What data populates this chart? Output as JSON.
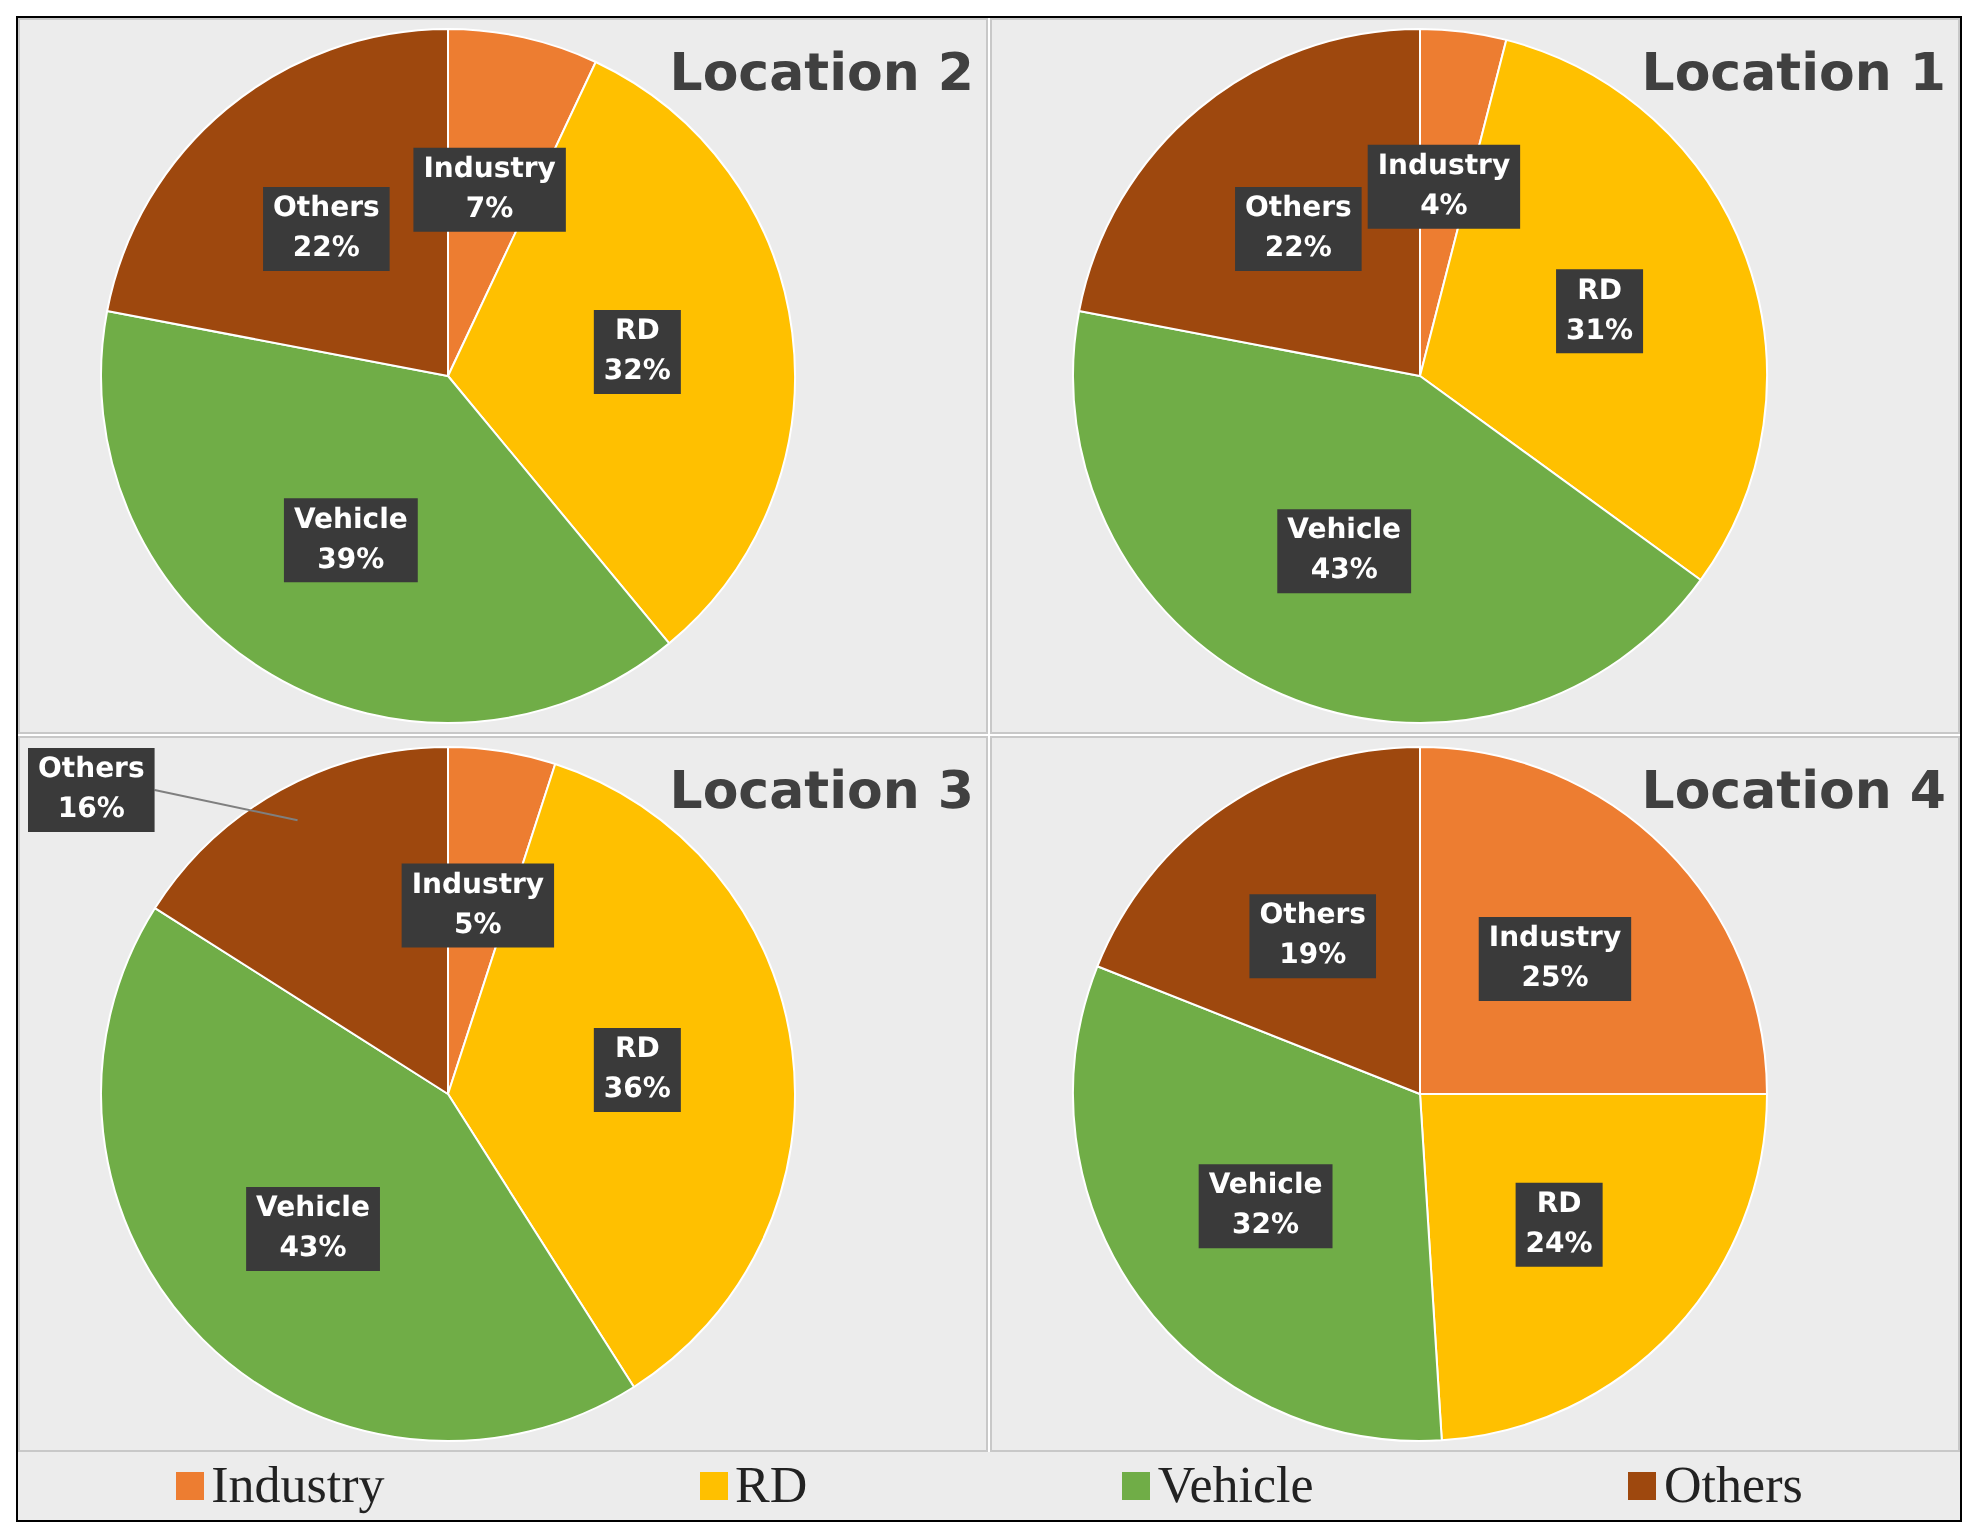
{
  "chart_data": [
    {
      "type": "pie",
      "title": "Location 2",
      "categories": [
        "Industry",
        "RD",
        "Vehicle",
        "Others"
      ],
      "values": [
        7,
        32,
        39,
        22
      ],
      "value_labels": [
        "7%",
        "32%",
        "39%",
        "22%"
      ],
      "colors": [
        "#ed7d31",
        "#ffc000",
        "#70ad47",
        "#9e480e"
      ]
    },
    {
      "type": "pie",
      "title": "Location 1",
      "categories": [
        "Industry",
        "RD",
        "Vehicle",
        "Others"
      ],
      "values": [
        4,
        31,
        43,
        22
      ],
      "value_labels": [
        "4%",
        "31%",
        "43%",
        "22%"
      ],
      "colors": [
        "#ed7d31",
        "#ffc000",
        "#70ad47",
        "#9e480e"
      ]
    },
    {
      "type": "pie",
      "title": "Location 3",
      "categories": [
        "Industry",
        "RD",
        "Vehicle",
        "Others"
      ],
      "values": [
        5,
        36,
        43,
        16
      ],
      "value_labels": [
        "5%",
        "36%",
        "43%",
        "16%"
      ],
      "colors": [
        "#ed7d31",
        "#ffc000",
        "#70ad47",
        "#9e480e"
      ]
    },
    {
      "type": "pie",
      "title": "Location 4",
      "categories": [
        "Industry",
        "RD",
        "Vehicle",
        "Others"
      ],
      "values": [
        25,
        24,
        32,
        19
      ],
      "value_labels": [
        "25%",
        "24%",
        "32%",
        "19%"
      ],
      "colors": [
        "#ed7d31",
        "#ffc000",
        "#70ad47",
        "#9e480e"
      ],
      "legend": "bottom"
    }
  ]
}
